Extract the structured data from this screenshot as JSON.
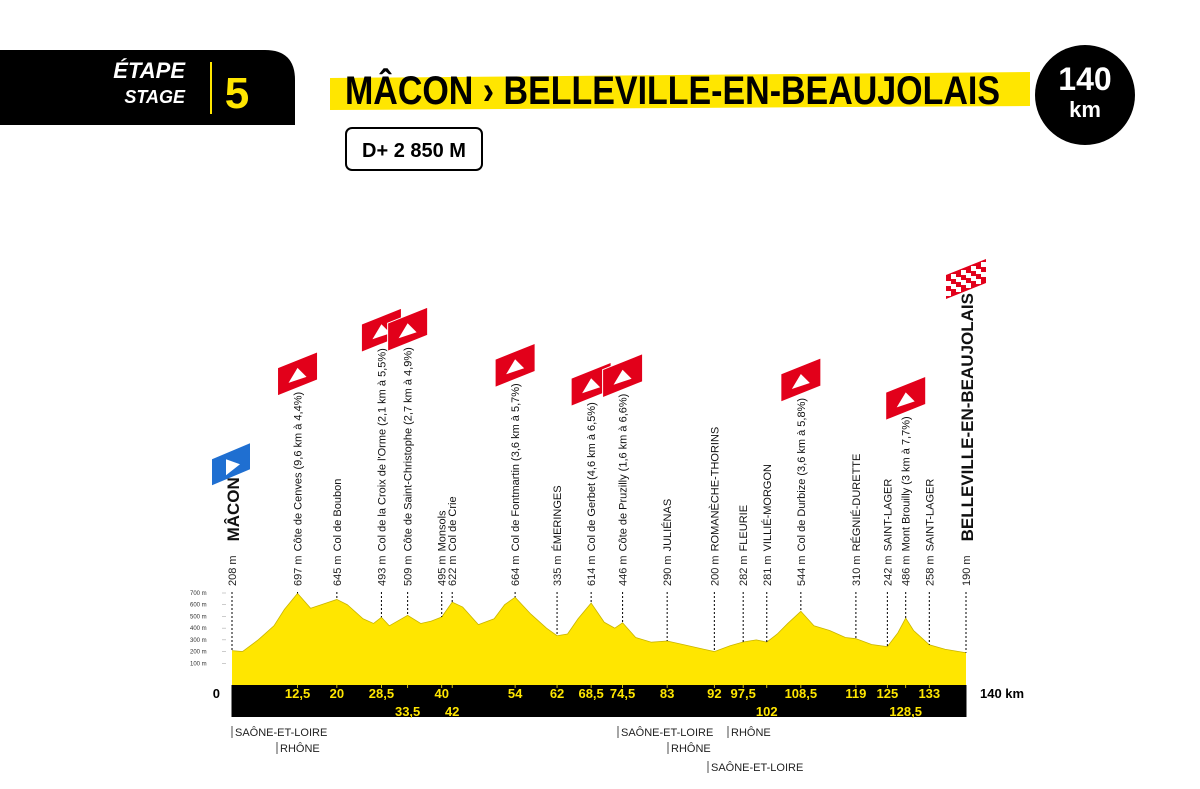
{
  "header": {
    "stage_fr": "ÉTAPE",
    "stage_en": "STAGE",
    "number": "5",
    "route": "MÂCON › BELLEVILLE-EN-BEAUJOLAIS",
    "distance": "140",
    "distance_unit": "km",
    "climb": "D+ 2 850 M"
  },
  "chart_data": {
    "type": "area",
    "color": "#ffe600",
    "x": [
      0,
      2,
      5,
      8,
      10,
      12.5,
      15,
      17,
      20,
      22,
      25,
      27,
      28.5,
      30,
      33.5,
      36,
      38,
      40,
      42,
      44,
      47,
      50,
      52,
      54,
      57,
      60,
      62,
      64,
      66,
      68.5,
      71,
      73,
      74.5,
      77,
      80,
      83,
      86,
      90,
      92,
      95,
      97.5,
      100,
      102,
      104,
      106,
      108.5,
      111,
      114,
      117,
      119,
      122,
      125,
      127,
      128.5,
      130,
      133,
      136,
      140
    ],
    "values": [
      208,
      200,
      300,
      420,
      560,
      697,
      570,
      600,
      645,
      600,
      480,
      440,
      493,
      420,
      509,
      440,
      460,
      495,
      622,
      580,
      430,
      480,
      600,
      664,
      520,
      400,
      335,
      350,
      480,
      614,
      450,
      400,
      446,
      320,
      280,
      290,
      260,
      220,
      200,
      250,
      282,
      300,
      281,
      350,
      440,
      544,
      420,
      380,
      320,
      310,
      260,
      242,
      360,
      486,
      380,
      258,
      220,
      190
    ],
    "xlim": [
      0,
      140
    ],
    "xticks": [
      0,
      {
        "value": 12.5,
        "label": "12,5"
      },
      20,
      {
        "value": 28.5,
        "label": "28,5"
      },
      {
        "value": 33.5,
        "label": "33,5"
      },
      40,
      42,
      54,
      62,
      {
        "value": 68.5,
        "label": "68,5"
      },
      {
        "value": 74.5,
        "label": "74,5"
      },
      83,
      92,
      {
        "value": 97.5,
        "label": "97,5"
      },
      102,
      {
        "value": 108.5,
        "label": "108,5"
      },
      119,
      125,
      {
        "value": 128.5,
        "label": "128,5"
      },
      133,
      {
        "value": 140,
        "label": "140 km"
      }
    ],
    "ylim": [
      0,
      700
    ],
    "yticks": [
      {
        "value": 100,
        "label": "100 m"
      },
      {
        "value": 200,
        "label": "200 m"
      },
      {
        "value": 300,
        "label": "300 m"
      },
      {
        "value": 400,
        "label": "400 m"
      },
      {
        "value": 500,
        "label": "500 m"
      },
      {
        "value": 600,
        "label": "600 m"
      },
      {
        "value": 700,
        "label": "700 m"
      }
    ],
    "waypoints": [
      {
        "km": 0,
        "alt": {
          "value": 208,
          "label": "208 m"
        },
        "name": "MÂCON",
        "flag": "start"
      },
      {
        "km": 12.5,
        "alt": {
          "value": 697,
          "label": "697 m"
        },
        "name": "Côte de Cenves (9,6 km à 4,4%)",
        "flag": "climb"
      },
      {
        "km": 20,
        "alt": {
          "value": 645,
          "label": "645 m"
        },
        "name": "Col de Boubon"
      },
      {
        "km": 28.5,
        "alt": {
          "value": 493,
          "label": "493 m"
        },
        "name": "Col de la Croix de l'Orme (2,1 km à 5,5%)",
        "flag": "climb"
      },
      {
        "km": 33.5,
        "alt": {
          "value": 509,
          "label": "509 m"
        },
        "name": "Côte de Saint-Christophe (2,7 km à 4,9%)",
        "flag": "climb"
      },
      {
        "km": 40,
        "alt": {
          "value": 495,
          "label": "495 m"
        },
        "name": "Monsols"
      },
      {
        "km": 42,
        "alt": {
          "value": 622,
          "label": "622 m"
        },
        "name": "Col de Crie"
      },
      {
        "km": 54,
        "alt": {
          "value": 664,
          "label": "664 m"
        },
        "name": "Col de Fontmartin (3,6 km à 5,7%)",
        "flag": "climb"
      },
      {
        "km": 62,
        "alt": {
          "value": 335,
          "label": "335 m"
        },
        "name": "ÉMERINGES"
      },
      {
        "km": 68.5,
        "alt": {
          "value": 614,
          "label": "614 m"
        },
        "name": "Col de Gerbet (4,6 km à 6,5%)",
        "flag": "climb"
      },
      {
        "km": 74.5,
        "alt": {
          "value": 446,
          "label": "446 m"
        },
        "name": "Côte de Pruzilly (1,6 km à 6,6%)",
        "flag": "climb"
      },
      {
        "km": 83,
        "alt": {
          "value": 290,
          "label": "290 m"
        },
        "name": "JULIÉNAS"
      },
      {
        "km": 92,
        "alt": {
          "value": 200,
          "label": "200 m"
        },
        "name": "ROMANÈCHE-THORINS"
      },
      {
        "km": 97.5,
        "alt": {
          "value": 282,
          "label": "282 m"
        },
        "name": "FLEURIE"
      },
      {
        "km": 102,
        "alt": {
          "value": 281,
          "label": "281 m"
        },
        "name": "VILLIÉ-MORGON"
      },
      {
        "km": 108.5,
        "alt": {
          "value": 544,
          "label": "544 m"
        },
        "name": "Col de Durbize (3,6 km à 5,8%)",
        "flag": "climb"
      },
      {
        "km": 119,
        "alt": {
          "value": 310,
          "label": "310 m"
        },
        "name": "RÉGNIÉ-DURETTE"
      },
      {
        "km": 125,
        "alt": {
          "value": 242,
          "label": "242 m"
        },
        "name": "SAINT-LAGER"
      },
      {
        "km": 128.5,
        "alt": {
          "value": 486,
          "label": "486 m"
        },
        "name": "Mont Brouilly (3 km à 7,7%)",
        "flag": "climb"
      },
      {
        "km": 133,
        "alt": {
          "value": 258,
          "label": "258 m"
        },
        "name": "SAINT-LAGER"
      },
      {
        "km": 140,
        "alt": {
          "value": 190,
          "label": "190 m"
        },
        "name": "BELLEVILLE-EN-BEAUJOLAIS",
        "flag": "finish"
      }
    ],
    "borders": [
      "SAÔNE-ET-LOIRE",
      "RHÔNE",
      "SAÔNE-ET-LOIRE",
      "RHÔNE",
      "RHÔNE",
      "SAÔNE-ET-LOIRE"
    ]
  }
}
